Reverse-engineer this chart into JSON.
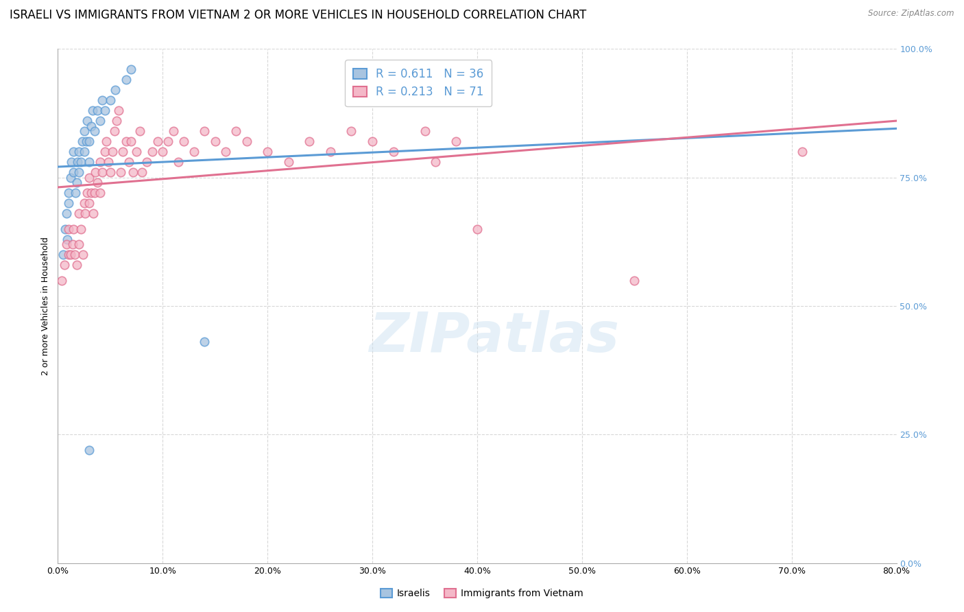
{
  "title": "ISRAELI VS IMMIGRANTS FROM VIETNAM 2 OR MORE VEHICLES IN HOUSEHOLD CORRELATION CHART",
  "source": "Source: ZipAtlas.com",
  "xlabel_ticks": [
    "0.0%",
    "10.0%",
    "20.0%",
    "30.0%",
    "40.0%",
    "50.0%",
    "60.0%",
    "70.0%",
    "80.0%"
  ],
  "ylabel_ticks": [
    "0.0%",
    "25.0%",
    "50.0%",
    "75.0%",
    "100.0%"
  ],
  "ylabel_label": "2 or more Vehicles in Household",
  "xmin": 0.0,
  "xmax": 0.8,
  "ymin": 0.0,
  "ymax": 1.0,
  "israeli_color": "#a8c4e0",
  "vietnam_color": "#f4b8c8",
  "trendline_israeli_color": "#5b9bd5",
  "trendline_vietnam_color": "#e07090",
  "R_israeli": 0.611,
  "N_israeli": 36,
  "R_vietnam": 0.213,
  "N_vietnam": 71,
  "watermark_text": "ZIPatlas",
  "legend_label_israeli": "Israelis",
  "legend_label_vietnam": "Immigrants from Vietnam",
  "israeli_x": [
    0.005,
    0.007,
    0.008,
    0.009,
    0.01,
    0.01,
    0.012,
    0.013,
    0.015,
    0.015,
    0.017,
    0.018,
    0.019,
    0.02,
    0.02,
    0.022,
    0.023,
    0.025,
    0.025,
    0.027,
    0.028,
    0.03,
    0.03,
    0.032,
    0.033,
    0.035,
    0.038,
    0.04,
    0.042,
    0.045,
    0.05,
    0.055,
    0.065,
    0.07,
    0.14,
    0.03
  ],
  "israeli_y": [
    0.6,
    0.65,
    0.68,
    0.63,
    0.7,
    0.72,
    0.75,
    0.78,
    0.8,
    0.76,
    0.72,
    0.74,
    0.78,
    0.76,
    0.8,
    0.78,
    0.82,
    0.84,
    0.8,
    0.82,
    0.86,
    0.78,
    0.82,
    0.85,
    0.88,
    0.84,
    0.88,
    0.86,
    0.9,
    0.88,
    0.9,
    0.92,
    0.94,
    0.96,
    0.43,
    0.22
  ],
  "vietnam_x": [
    0.004,
    0.006,
    0.008,
    0.01,
    0.01,
    0.012,
    0.014,
    0.015,
    0.016,
    0.018,
    0.02,
    0.02,
    0.022,
    0.024,
    0.025,
    0.026,
    0.028,
    0.03,
    0.03,
    0.032,
    0.034,
    0.035,
    0.036,
    0.038,
    0.04,
    0.04,
    0.042,
    0.045,
    0.046,
    0.048,
    0.05,
    0.052,
    0.054,
    0.056,
    0.058,
    0.06,
    0.062,
    0.065,
    0.068,
    0.07,
    0.072,
    0.075,
    0.078,
    0.08,
    0.085,
    0.09,
    0.095,
    0.1,
    0.105,
    0.11,
    0.115,
    0.12,
    0.13,
    0.14,
    0.15,
    0.16,
    0.17,
    0.18,
    0.2,
    0.22,
    0.24,
    0.26,
    0.28,
    0.3,
    0.32,
    0.35,
    0.36,
    0.38,
    0.4,
    0.55,
    0.71
  ],
  "vietnam_y": [
    0.55,
    0.58,
    0.62,
    0.6,
    0.65,
    0.6,
    0.62,
    0.65,
    0.6,
    0.58,
    0.62,
    0.68,
    0.65,
    0.6,
    0.7,
    0.68,
    0.72,
    0.7,
    0.75,
    0.72,
    0.68,
    0.72,
    0.76,
    0.74,
    0.78,
    0.72,
    0.76,
    0.8,
    0.82,
    0.78,
    0.76,
    0.8,
    0.84,
    0.86,
    0.88,
    0.76,
    0.8,
    0.82,
    0.78,
    0.82,
    0.76,
    0.8,
    0.84,
    0.76,
    0.78,
    0.8,
    0.82,
    0.8,
    0.82,
    0.84,
    0.78,
    0.82,
    0.8,
    0.84,
    0.82,
    0.8,
    0.84,
    0.82,
    0.8,
    0.78,
    0.82,
    0.8,
    0.84,
    0.82,
    0.8,
    0.84,
    0.78,
    0.82,
    0.65,
    0.55,
    0.8
  ],
  "grid_color": "#d8d8d8",
  "background_color": "#ffffff",
  "right_axis_tick_color": "#5b9bd5",
  "marker_size": 80,
  "marker_linewidth": 1.2,
  "title_fontsize": 12,
  "axis_fontsize": 9,
  "legend_fontsize": 12
}
